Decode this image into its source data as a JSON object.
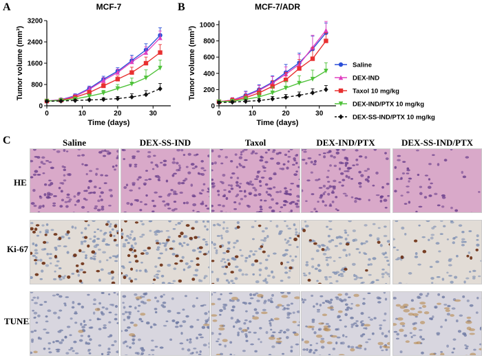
{
  "panels": {
    "a_letter": "A",
    "b_letter": "B",
    "c_letter": "C"
  },
  "chart_data": [
    {
      "type": "line",
      "title": "MCF-7",
      "xlabel": "Time (days)",
      "ylabel": "Tumor volume (mm³)",
      "xlim": [
        0,
        35
      ],
      "ylim": [
        0,
        3200
      ],
      "xticks": [
        0,
        10,
        20,
        30
      ],
      "yticks": [
        0,
        800,
        1600,
        2400,
        3200
      ],
      "x": [
        0,
        4,
        8,
        12,
        16,
        20,
        24,
        28,
        32
      ],
      "series": [
        {
          "name": "Saline",
          "color": "#2b4fd8",
          "marker": "circle",
          "dashed": false,
          "values": [
            180,
            230,
            380,
            650,
            1000,
            1300,
            1700,
            2100,
            2650
          ],
          "errors": [
            30,
            40,
            70,
            90,
            110,
            130,
            200,
            230,
            280
          ]
        },
        {
          "name": "DEX-IND",
          "color": "#e040c0",
          "marker": "triangle",
          "dashed": false,
          "values": [
            180,
            220,
            360,
            620,
            950,
            1250,
            1650,
            2000,
            2550
          ],
          "errors": [
            30,
            40,
            70,
            90,
            110,
            130,
            180,
            220,
            260
          ]
        },
        {
          "name": "Taxol 10 mg/kg",
          "color": "#e83030",
          "marker": "square",
          "dashed": false,
          "values": [
            180,
            210,
            320,
            500,
            750,
            1000,
            1250,
            1600,
            2000
          ],
          "errors": [
            30,
            40,
            60,
            80,
            100,
            120,
            200,
            230,
            300
          ]
        },
        {
          "name": "DEX-IND/PTX 10 mg/kg",
          "color": "#4fc23a",
          "marker": "triangle-down",
          "dashed": false,
          "values": [
            180,
            200,
            260,
            360,
            480,
            650,
            820,
            1050,
            1420
          ],
          "errors": [
            30,
            40,
            60,
            80,
            100,
            150,
            220,
            300,
            300
          ]
        },
        {
          "name": "DEX-SS-IND/PTX 10 mg/kg",
          "color": "#111111",
          "marker": "diamond",
          "dashed": true,
          "values": [
            170,
            180,
            200,
            220,
            240,
            270,
            330,
            420,
            640
          ],
          "errors": [
            20,
            20,
            30,
            40,
            60,
            80,
            120,
            150,
            200
          ]
        }
      ],
      "legend": "none"
    },
    {
      "type": "line",
      "title": "MCF-7/ADR",
      "xlabel": "Time (days)",
      "ylabel": "Tumor volume (mm³)",
      "xlim": [
        0,
        35
      ],
      "ylim": [
        0,
        1050
      ],
      "xticks": [
        0,
        10,
        20,
        30
      ],
      "yticks": [
        0,
        200,
        400,
        600,
        800,
        1000
      ],
      "x": [
        0,
        4,
        8,
        12,
        16,
        20,
        24,
        28,
        32
      ],
      "series": [
        {
          "name": "Saline",
          "color": "#2b4fd8",
          "marker": "circle",
          "dashed": false,
          "values": [
            50,
            70,
            130,
            200,
            290,
            410,
            530,
            700,
            900
          ],
          "errors": [
            20,
            30,
            50,
            60,
            80,
            100,
            120,
            160,
            120
          ]
        },
        {
          "name": "DEX-IND",
          "color": "#e040c0",
          "marker": "triangle",
          "dashed": false,
          "values": [
            50,
            70,
            120,
            190,
            280,
            390,
            510,
            720,
            930
          ],
          "errors": [
            20,
            30,
            50,
            60,
            80,
            90,
            120,
            150,
            110
          ]
        },
        {
          "name": "Taxol 10 mg/kg",
          "color": "#e83030",
          "marker": "square",
          "dashed": false,
          "values": [
            50,
            65,
            100,
            160,
            240,
            320,
            460,
            580,
            800
          ],
          "errors": [
            20,
            30,
            40,
            50,
            70,
            90,
            110,
            140,
            100
          ]
        },
        {
          "name": "DEX-IND/PTX 10 mg/kg",
          "color": "#4fc23a",
          "marker": "triangle-down",
          "dashed": false,
          "values": [
            50,
            55,
            80,
            110,
            160,
            220,
            280,
            330,
            430
          ],
          "errors": [
            20,
            25,
            35,
            50,
            70,
            80,
            90,
            110,
            100
          ]
        },
        {
          "name": "DEX-SS-IND/PTX 10 mg/kg",
          "color": "#111111",
          "marker": "diamond",
          "dashed": true,
          "values": [
            40,
            45,
            55,
            65,
            85,
            105,
            130,
            160,
            200
          ],
          "errors": [
            15,
            15,
            20,
            25,
            30,
            35,
            40,
            50,
            50
          ]
        }
      ],
      "legend": "right"
    }
  ],
  "legend_entries": [
    {
      "name": "Saline",
      "color": "#2b4fd8",
      "marker": "circle",
      "dashed": false
    },
    {
      "name": "DEX-IND",
      "color": "#e040c0",
      "marker": "triangle",
      "dashed": false
    },
    {
      "name": "Taxol 10 mg/kg",
      "color": "#e83030",
      "marker": "square",
      "dashed": false
    },
    {
      "name": "DEX-IND/PTX 10 mg/kg",
      "color": "#4fc23a",
      "marker": "triangle-down",
      "dashed": false
    },
    {
      "name": "DEX-SS-IND/PTX 10 mg/kg",
      "color": "#111111",
      "marker": "diamond",
      "dashed": true
    }
  ],
  "micrographs": {
    "columns": [
      "Saline",
      "DEX-SS-IND",
      "Taxol",
      "DEX-IND/PTX",
      "DEX-SS-IND/PTX"
    ],
    "rows": [
      "HE",
      "Ki-67",
      "TUNEL"
    ],
    "row_colors": {
      "HE": {
        "bg": "#d9a9c9",
        "cell": "#6a3f8c"
      },
      "Ki-67": {
        "bg": "#e2dcd6",
        "cell": "#7d8fb3"
      },
      "TUNEL": {
        "bg": "#d8d6df",
        "cell": "#6e7aa3"
      }
    },
    "ki67_positive_fraction": [
      0.25,
      0.25,
      0.12,
      0.08,
      0.04
    ],
    "tunel_positive_fraction": [
      0.02,
      0.04,
      0.15,
      0.18,
      0.25
    ]
  }
}
